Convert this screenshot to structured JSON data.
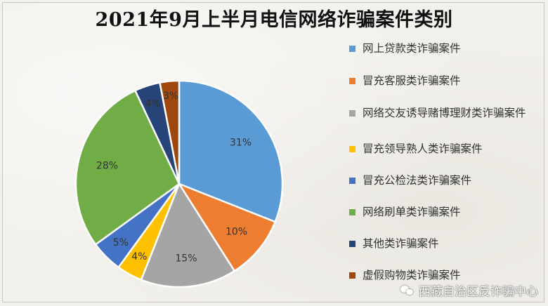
{
  "chart_data": {
    "type": "pie",
    "title": "2021年9月上半月电信网络诈骗案件类别",
    "labels": [
      "网上贷款类诈骗案件",
      "冒充客服类诈骗案件",
      "网络交友诱导赌博理财类诈骗案件",
      "冒充领导熟人类诈骗案件",
      "冒充公检法类诈骗案件",
      "网络刷单类诈骗案件",
      "其他类诈骗案件",
      "虚假购物类诈骗案件"
    ],
    "values": [
      31,
      10,
      15,
      4,
      5,
      28,
      4,
      3
    ],
    "data_labels": [
      "31%",
      "10%",
      "15%",
      "4%",
      "5%",
      "28%",
      "4%",
      "3%"
    ],
    "colors": [
      "#5b9bd5",
      "#ed7d31",
      "#a5a5a5",
      "#ffc000",
      "#4472c4",
      "#70ad47",
      "#264478",
      "#9e480e"
    ],
    "legend_position": "right"
  },
  "watermark": "西藏自治区反诈骗中心",
  "watermark_icon": "wechat-icon"
}
